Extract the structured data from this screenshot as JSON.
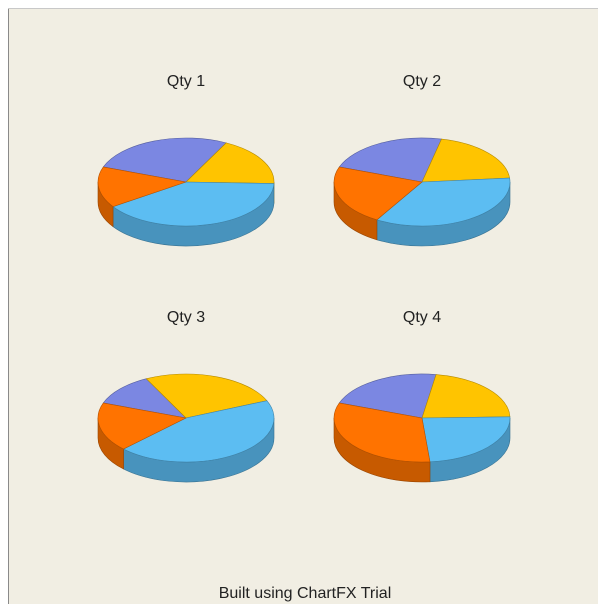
{
  "chart_data": [
    {
      "type": "pie",
      "title": "Qty 1",
      "categories": [
        null,
        null,
        null,
        null
      ],
      "values": [
        27,
        18,
        40,
        15
      ],
      "colors": [
        "#7b87e2",
        "#ffc400",
        "#5cbdf2",
        "#ff7300"
      ]
    },
    {
      "type": "pie",
      "title": "Qty 2",
      "categories": [
        null,
        null,
        null,
        null
      ],
      "values": [
        23,
        20,
        35,
        22
      ],
      "colors": [
        "#7b87e2",
        "#ffc400",
        "#5cbdf2",
        "#ff7300"
      ]
    },
    {
      "type": "pie",
      "title": "Qty 3",
      "categories": [
        null,
        null,
        null,
        null
      ],
      "values": [
        12,
        26,
        44,
        18
      ],
      "colors": [
        "#7b87e2",
        "#ffc400",
        "#5cbdf2",
        "#ff7300"
      ]
    },
    {
      "type": "pie",
      "title": "Qty 4",
      "categories": [
        null,
        null,
        null,
        null
      ],
      "values": [
        22,
        22,
        24,
        32
      ],
      "colors": [
        "#7b87e2",
        "#ffc400",
        "#5cbdf2",
        "#ff7300"
      ]
    }
  ],
  "footer": "Built using ChartFX Trial"
}
